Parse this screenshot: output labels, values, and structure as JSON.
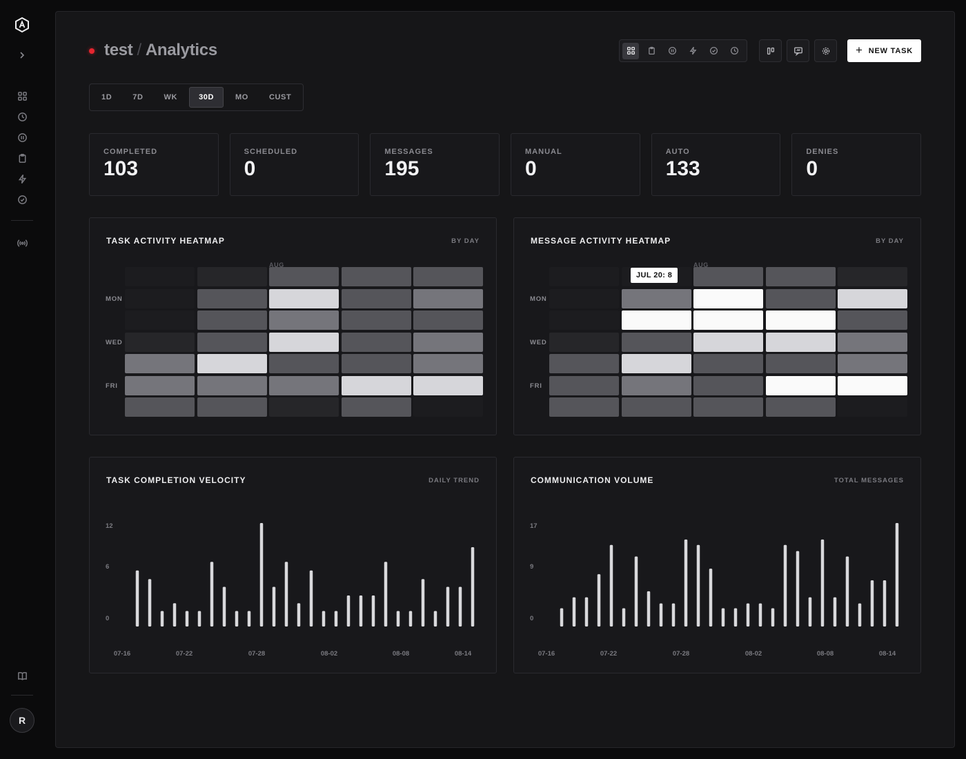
{
  "sidebar": {
    "logo": "app-logo",
    "expand_icon": "chevron-right-icon",
    "nav": [
      {
        "icon": "grid-icon"
      },
      {
        "icon": "clock-icon"
      },
      {
        "icon": "pause-icon"
      },
      {
        "icon": "clipboard-icon"
      },
      {
        "icon": "bolt-icon"
      },
      {
        "icon": "check-circle-icon"
      }
    ],
    "broadcast_icon": "broadcast-icon",
    "docs_icon": "book-icon",
    "avatar_initial": "R"
  },
  "header": {
    "project": "test",
    "separator": "/",
    "page": "Analytics",
    "status_color": "#e5252f",
    "views": [
      {
        "icon": "grid-icon",
        "active": true
      },
      {
        "icon": "clipboard-icon",
        "active": false
      },
      {
        "icon": "pause-icon",
        "active": false
      },
      {
        "icon": "bolt-icon",
        "active": false
      },
      {
        "icon": "check-circle-icon",
        "active": false
      },
      {
        "icon": "clock-icon",
        "active": false
      }
    ],
    "actions": [
      "kanban-icon",
      "chat-icon",
      "settings-icon"
    ],
    "new_task_label": "NEW TASK"
  },
  "range_tabs": [
    {
      "label": "1D",
      "active": false
    },
    {
      "label": "7D",
      "active": false
    },
    {
      "label": "WK",
      "active": false
    },
    {
      "label": "30D",
      "active": true
    },
    {
      "label": "MO",
      "active": false
    },
    {
      "label": "CUST",
      "active": false
    }
  ],
  "stats": [
    {
      "label": "COMPLETED",
      "value": "103"
    },
    {
      "label": "SCHEDULED",
      "value": "0"
    },
    {
      "label": "MESSAGES",
      "value": "195"
    },
    {
      "label": "MANUAL",
      "value": "0"
    },
    {
      "label": "AUTO",
      "value": "133"
    },
    {
      "label": "DENIES",
      "value": "0"
    }
  ],
  "task_heatmap": {
    "title": "TASK ACTIVITY HEATMAP",
    "subtitle": "BY DAY",
    "month_label": "AUG",
    "row_labels": [
      "MON",
      "WED",
      "FRI"
    ],
    "levels": [
      [
        0,
        1,
        3,
        3,
        3
      ],
      [
        0,
        3,
        5,
        3,
        4
      ],
      [
        0,
        3,
        4,
        3,
        3
      ],
      [
        1,
        3,
        5,
        3,
        4
      ],
      [
        4,
        5,
        3,
        3,
        4
      ],
      [
        4,
        4,
        4,
        5,
        5
      ],
      [
        3,
        3,
        1,
        3,
        0
      ]
    ]
  },
  "message_heatmap": {
    "title": "MESSAGE ACTIVITY HEATMAP",
    "subtitle": "BY DAY",
    "month_label": "AUG",
    "row_labels": [
      "MON",
      "WED",
      "FRI"
    ],
    "tooltip": "JUL 20: 8",
    "levels": [
      [
        0,
        0,
        3,
        3,
        1
      ],
      [
        0,
        4,
        6,
        3,
        5
      ],
      [
        0,
        6,
        6,
        6,
        3
      ],
      [
        1,
        3,
        5,
        5,
        4
      ],
      [
        3,
        5,
        3,
        3,
        4
      ],
      [
        3,
        4,
        3,
        6,
        6
      ],
      [
        3,
        3,
        3,
        3,
        0
      ]
    ]
  },
  "level_colors": [
    "#1c1c1f",
    "#262629",
    "#3a3a3e",
    "#55555a",
    "#75757b",
    "#d6d6da",
    "#fafafa"
  ],
  "velocity": {
    "title": "TASK COMPLETION VELOCITY",
    "subtitle": "DAILY TREND",
    "chart_data": {
      "type": "bar",
      "y_ticks": [
        "12",
        "6",
        "0"
      ],
      "ylim": [
        0,
        12
      ],
      "x_ticks": [
        "07-16",
        "07-22",
        "07-28",
        "08-02",
        "08-08",
        "08-14"
      ],
      "values": [
        6.5,
        5.5,
        1.8,
        2.7,
        1.8,
        1.8,
        7.5,
        4.6,
        1.8,
        1.8,
        12,
        4.6,
        7.5,
        2.7,
        6.5,
        1.8,
        1.8,
        3.6,
        3.6,
        3.6,
        7.5,
        1.8,
        1.8,
        5.5,
        1.8,
        4.6,
        4.6,
        9.2
      ]
    }
  },
  "volume": {
    "title": "COMMUNICATION VOLUME",
    "subtitle": "TOTAL MESSAGES",
    "chart_data": {
      "type": "bar",
      "y_ticks": [
        "17",
        "9",
        "0"
      ],
      "ylim": [
        0,
        17
      ],
      "x_ticks": [
        "07-16",
        "07-22",
        "07-28",
        "08-02",
        "08-08",
        "08-14"
      ],
      "values": [
        3,
        4.8,
        4.8,
        8.6,
        13.4,
        3,
        11.5,
        5.8,
        3.8,
        3.8,
        14.3,
        13.4,
        9.5,
        3,
        3,
        3.8,
        3.8,
        3,
        13.4,
        12.4,
        4.8,
        14.3,
        4.8,
        11.5,
        3.8,
        7.6,
        7.6,
        17
      ]
    }
  }
}
